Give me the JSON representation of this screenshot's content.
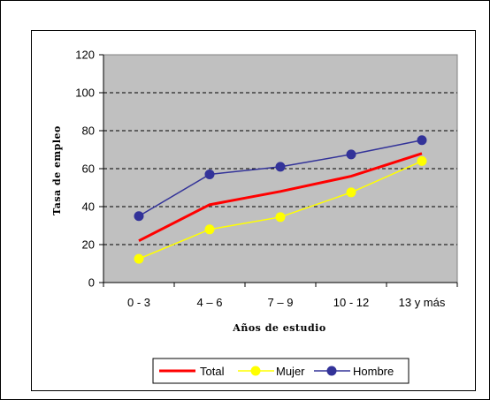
{
  "chart_data": {
    "type": "line",
    "title": "",
    "xlabel": "Años de estudio",
    "ylabel": "Tasa de empleo",
    "categories": [
      "0 - 3",
      "4 – 6",
      "7 – 9",
      "10 - 12",
      "13 y más"
    ],
    "ylim": [
      0,
      120
    ],
    "yticks": [
      "0",
      "20",
      "40",
      "60",
      "80",
      "100",
      "120"
    ],
    "grid": true,
    "legend_position": "bottom",
    "series": [
      {
        "name": "Total",
        "values": [
          22,
          41,
          48,
          56,
          68
        ],
        "color": "#ff0000",
        "marker": "none"
      },
      {
        "name": "Mujer",
        "values": [
          12.5,
          28,
          34.5,
          47.5,
          64
        ],
        "color": "#ffff00",
        "marker": "circle"
      },
      {
        "name": "Hombre",
        "values": [
          35,
          57,
          61,
          67.5,
          75
        ],
        "color": "#333399",
        "marker": "circle"
      }
    ],
    "plot_background": "#c0c0c0"
  }
}
